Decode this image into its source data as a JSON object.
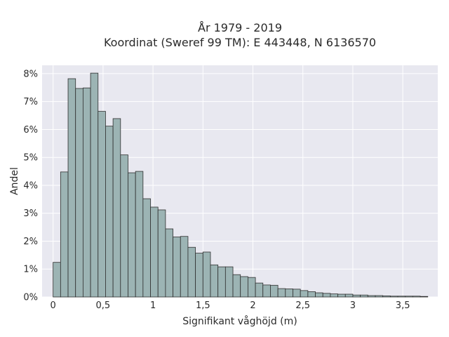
{
  "chart_data": {
    "type": "bar",
    "title": "År 1979 - 2019",
    "subtitle": "Koordinat (Sweref 99 TM): E 443448, N 6136570",
    "xlabel": "Signifikant våghöjd (m)",
    "ylabel": "Andel",
    "bin_width": 0.075,
    "bin_start": 0.0,
    "x_ticks": [
      {
        "value": 0,
        "label": "0"
      },
      {
        "value": 0.5,
        "label": "0,5"
      },
      {
        "value": 1,
        "label": "1"
      },
      {
        "value": 1.5,
        "label": "1,5"
      },
      {
        "value": 2,
        "label": "2"
      },
      {
        "value": 2.5,
        "label": "2,5"
      },
      {
        "value": 3,
        "label": "3"
      },
      {
        "value": 3.5,
        "label": "3,5"
      }
    ],
    "y_ticks": [
      {
        "value": 0,
        "label": "0%"
      },
      {
        "value": 1,
        "label": "1%"
      },
      {
        "value": 2,
        "label": "2%"
      },
      {
        "value": 3,
        "label": "3%"
      },
      {
        "value": 4,
        "label": "4%"
      },
      {
        "value": 5,
        "label": "5%"
      },
      {
        "value": 6,
        "label": "6%"
      },
      {
        "value": 7,
        "label": "7%"
      },
      {
        "value": 8,
        "label": "8%"
      }
    ],
    "xlim": [
      -0.11,
      3.85
    ],
    "ylim": [
      0,
      8.3
    ],
    "values": [
      1.24,
      4.48,
      7.82,
      7.47,
      7.49,
      8.02,
      6.65,
      6.12,
      6.39,
      5.09,
      4.45,
      4.5,
      3.52,
      3.22,
      3.12,
      2.44,
      2.15,
      2.17,
      1.78,
      1.57,
      1.61,
      1.15,
      1.08,
      1.08,
      0.8,
      0.73,
      0.7,
      0.5,
      0.43,
      0.42,
      0.3,
      0.29,
      0.28,
      0.23,
      0.19,
      0.15,
      0.13,
      0.11,
      0.1,
      0.1,
      0.07,
      0.07,
      0.05,
      0.05,
      0.04,
      0.03,
      0.03,
      0.03,
      0.03,
      0.02
    ],
    "grid": true,
    "colors": {
      "plot_background": "#e8e8f0",
      "grid": "#ffffff",
      "bar_fill": "#9cb4b4",
      "bar_stroke": "#2f2f2f"
    }
  }
}
